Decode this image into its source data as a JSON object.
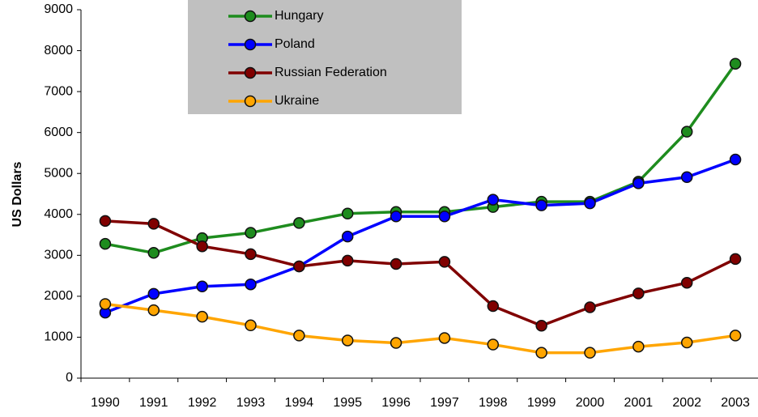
{
  "chart_data": {
    "type": "line",
    "y_label": "US Dollars",
    "categories": [
      "1990",
      "1991",
      "1992",
      "1993",
      "1994",
      "1995",
      "1996",
      "1997",
      "1998",
      "1999",
      "2000",
      "2001",
      "2002",
      "2003"
    ],
    "series": [
      {
        "name": "Hungary",
        "color": "#1e8c1e",
        "values": [
          3280,
          3060,
          3420,
          3550,
          3790,
          4020,
          4060,
          4060,
          4180,
          4310,
          4310,
          4800,
          6020,
          7680
        ]
      },
      {
        "name": "Poland",
        "color": "#0000ff",
        "values": [
          1600,
          2060,
          2240,
          2290,
          2730,
          3460,
          3950,
          3950,
          4360,
          4220,
          4270,
          4760,
          4910,
          5340
        ]
      },
      {
        "name": "Russian Federation",
        "color": "#800000",
        "values": [
          3840,
          3770,
          3220,
          3030,
          2730,
          2870,
          2790,
          2840,
          1760,
          1280,
          1730,
          2070,
          2330,
          2910
        ]
      },
      {
        "name": "Ukraine",
        "color": "#ffa500",
        "values": [
          1810,
          1660,
          1500,
          1290,
          1040,
          920,
          860,
          980,
          820,
          620,
          620,
          770,
          870,
          1040
        ]
      }
    ],
    "ylim": [
      0,
      9000
    ],
    "yticks": [
      0,
      1000,
      2000,
      3000,
      4000,
      5000,
      6000,
      7000,
      8000,
      9000
    ],
    "grid": false,
    "legend": "top"
  }
}
